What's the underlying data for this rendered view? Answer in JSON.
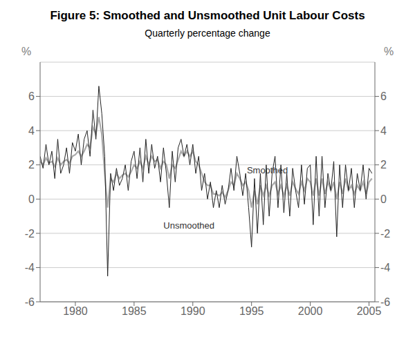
{
  "chart_data": {
    "type": "line",
    "title": "Figure 5: Smoothed and Unsmoothed Unit Labour Costs",
    "subtitle": "Quarterly percentage change",
    "ylabel": "%",
    "y2label": "%",
    "xlim": [
      1977.0,
      2005.5
    ],
    "xticks": [
      1980,
      1985,
      1990,
      1995,
      2000,
      2005
    ],
    "ylim": [
      -6,
      8
    ],
    "yticks": [
      -6,
      -4,
      -2,
      0,
      2,
      4,
      6
    ],
    "y2lim": [
      -6,
      8
    ],
    "y2ticks": [
      -6,
      -4,
      -2,
      0,
      2,
      4,
      6
    ],
    "grid": true,
    "x": [
      1977.0,
      1977.25,
      1977.5,
      1977.75,
      1978.0,
      1978.25,
      1978.5,
      1978.75,
      1979.0,
      1979.25,
      1979.5,
      1979.75,
      1980.0,
      1980.25,
      1980.5,
      1980.75,
      1981.0,
      1981.25,
      1981.5,
      1981.75,
      1982.0,
      1982.25,
      1982.5,
      1982.75,
      1983.0,
      1983.25,
      1983.5,
      1983.75,
      1984.0,
      1984.25,
      1984.5,
      1984.75,
      1985.0,
      1985.25,
      1985.5,
      1985.75,
      1986.0,
      1986.25,
      1986.5,
      1986.75,
      1987.0,
      1987.25,
      1987.5,
      1987.75,
      1988.0,
      1988.25,
      1988.5,
      1988.75,
      1989.0,
      1989.25,
      1989.5,
      1989.75,
      1990.0,
      1990.25,
      1990.5,
      1990.75,
      1991.0,
      1991.25,
      1991.5,
      1991.75,
      1992.0,
      1992.25,
      1992.5,
      1992.75,
      1993.0,
      1993.25,
      1993.5,
      1993.75,
      1994.0,
      1994.25,
      1994.5,
      1994.75,
      1995.0,
      1995.25,
      1995.5,
      1995.75,
      1996.0,
      1996.25,
      1996.5,
      1996.75,
      1997.0,
      1997.25,
      1997.5,
      1997.75,
      1998.0,
      1998.25,
      1998.5,
      1998.75,
      1999.0,
      1999.25,
      1999.5,
      1999.75,
      2000.0,
      2000.25,
      2000.5,
      2000.75,
      2001.0,
      2001.25,
      2001.5,
      2001.75,
      2002.0,
      2002.25,
      2002.5,
      2002.75,
      2003.0,
      2003.25,
      2003.5,
      2003.75,
      2004.0,
      2004.25,
      2004.5,
      2004.75,
      2005.0,
      2005.25
    ],
    "series": [
      {
        "name": "Smoothed",
        "color": "#aaaaaa",
        "values": [
          2.2,
          2.0,
          2.4,
          2.1,
          2.2,
          1.9,
          2.4,
          2.0,
          2.2,
          2.3,
          2.1,
          2.5,
          2.6,
          2.8,
          2.5,
          2.8,
          3.2,
          3.0,
          4.2,
          3.8,
          4.8,
          3.8,
          1.5,
          -0.5,
          1.2,
          1.0,
          1.5,
          1.2,
          1.4,
          1.5,
          1.3,
          1.6,
          2.0,
          1.8,
          2.2,
          1.8,
          2.5,
          2.0,
          2.5,
          2.2,
          2.3,
          1.8,
          2.2,
          2.0,
          1.2,
          2.0,
          1.8,
          2.3,
          2.8,
          2.5,
          2.8,
          2.5,
          2.8,
          2.2,
          2.0,
          1.5,
          1.0,
          0.8,
          0.8,
          0.3,
          0.3,
          0.2,
          0.4,
          0.1,
          0.5,
          1.0,
          0.8,
          1.5,
          1.2,
          0.8,
          1.0,
          0.5,
          -0.5,
          0.5,
          -0.3,
          0.8,
          0.2,
          0.8,
          0.2,
          0.8,
          1.0,
          0.3,
          0.8,
          0.2,
          0.8,
          0.2,
          1.0,
          0.6,
          0.3,
          1.0,
          0.5,
          1.2,
          1.0,
          0.2,
          1.2,
          0.2,
          1.2,
          0.3,
          1.0,
          0.5,
          1.0,
          0.0,
          1.0,
          0.3,
          1.2,
          0.5,
          0.8,
          0.3,
          0.8,
          0.5,
          1.0,
          0.3,
          1.0,
          1.2
        ]
      },
      {
        "name": "Unsmoothed",
        "color": "#222222",
        "values": [
          2.5,
          1.8,
          3.2,
          2.0,
          2.8,
          1.2,
          3.5,
          1.5,
          2.0,
          3.0,
          1.5,
          3.3,
          2.8,
          3.8,
          2.0,
          3.5,
          4.0,
          2.5,
          5.2,
          3.5,
          6.6,
          5.0,
          2.5,
          -4.5,
          1.5,
          0.5,
          1.8,
          0.8,
          1.2,
          2.0,
          0.5,
          2.2,
          2.8,
          1.2,
          3.0,
          1.0,
          3.5,
          1.5,
          3.2,
          1.8,
          2.5,
          1.0,
          3.0,
          1.5,
          -0.5,
          2.8,
          1.0,
          3.0,
          3.5,
          2.5,
          3.2,
          2.0,
          3.2,
          1.5,
          2.5,
          0.5,
          1.5,
          0.0,
          1.0,
          -0.5,
          0.5,
          -0.5,
          0.8,
          -0.3,
          0.5,
          1.8,
          0.5,
          2.5,
          1.5,
          0.2,
          1.5,
          -0.5,
          -2.8,
          1.2,
          -2.0,
          1.5,
          -1.5,
          2.0,
          -1.0,
          1.5,
          2.5,
          -0.5,
          2.0,
          -0.8,
          1.5,
          -1.0,
          1.8,
          0.5,
          -0.5,
          2.0,
          -0.3,
          1.8,
          2.0,
          -1.5,
          2.5,
          -1.0,
          2.5,
          -0.5,
          1.5,
          0.5,
          2.2,
          -2.2,
          2.0,
          -0.5,
          2.0,
          0.5,
          1.8,
          -0.5,
          1.5,
          0.5,
          2.0,
          0.0,
          1.8,
          1.5
        ]
      }
    ],
    "annotations": [
      {
        "text": "Smoothed",
        "x": 1994.6,
        "y": 1.7
      },
      {
        "text": "Unsmoothed",
        "x": 1987.5,
        "y": -1.55
      }
    ]
  }
}
